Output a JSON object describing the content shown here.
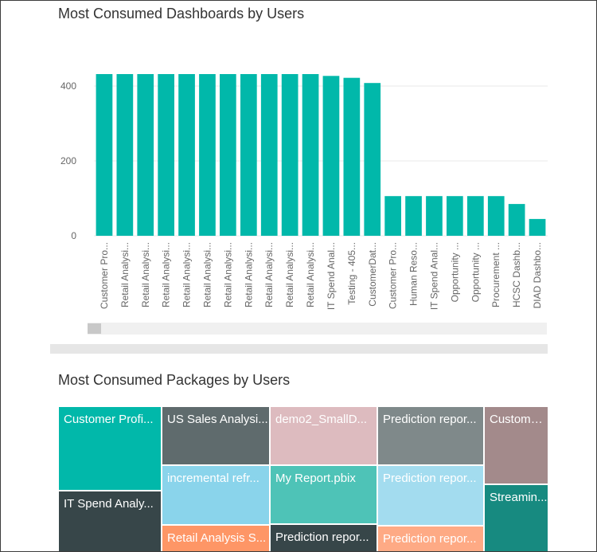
{
  "dashboards_chart": {
    "title": "Most Consumed Dashboards by Users",
    "chart_data": {
      "type": "bar",
      "title": "Most Consumed Dashboards by Users",
      "xlabel": "",
      "ylabel": "",
      "ylim": [
        0,
        500
      ],
      "yticks": [
        0,
        200,
        400
      ],
      "grid": true,
      "bar_color": "#01B8AA",
      "categories": [
        "Customer Pro...",
        "Retail Analysi...",
        "Retail Analysi...",
        "Retail Analysi...",
        "Retail Analysi...",
        "Retail Analysi...",
        "Retail Analysi...",
        "Retail Analysi...",
        "Retail Analysi...",
        "Retail Analysi...",
        "Retail Analysi...",
        "IT Spend Anal...",
        "Testing - 405...",
        "CustomerDat...",
        "Customer Pro...",
        "Human Reso...",
        "IT Spend Anal...",
        "Opportunity ...",
        "Opportunity ...",
        "Procurement ...",
        "HCSC Dashb...",
        "DIAD Dashbo..."
      ],
      "values": [
        432,
        432,
        432,
        432,
        432,
        432,
        432,
        432,
        432,
        432,
        432,
        427,
        422,
        408,
        106,
        106,
        106,
        106,
        106,
        106,
        85,
        45
      ]
    }
  },
  "packages_treemap": {
    "title": "Most Consumed Packages by Users",
    "tiles": [
      {
        "label": "Customer Profi...",
        "color": "#01B8AA"
      },
      {
        "label": "IT Spend Analy...",
        "color": "#374649"
      },
      {
        "label": "US Sales Analysi...",
        "color": "#5F6B6D"
      },
      {
        "label": "incremental refr...",
        "color": "#8AD4EB"
      },
      {
        "label": "Retail Analysis S...",
        "color": "#FE9666"
      },
      {
        "label": "demo2_SmallD...",
        "color": "#DDBBBF"
      },
      {
        "label": "My Report.pbix",
        "color": "#4EC3B7"
      },
      {
        "label": "Prediction repor...",
        "color": "#374649"
      },
      {
        "label": "Prediction repor...",
        "color": "#7F898A"
      },
      {
        "label": "Prediction repor...",
        "color": "#A3DCEF"
      },
      {
        "label": "Prediction repor...",
        "color": "#FEAA85"
      },
      {
        "label": "CustomVi...",
        "color": "#A38A8B"
      },
      {
        "label": "Streamin...",
        "color": "#178A80"
      }
    ]
  }
}
